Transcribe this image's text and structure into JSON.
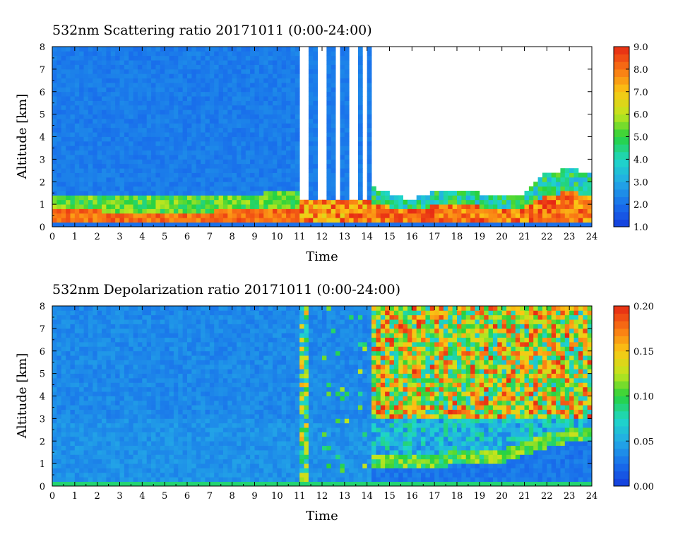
{
  "chart_data": [
    {
      "type": "heatmap",
      "title": "532nm Scattering ratio  20171011 (0:00-24:00)",
      "xlabel": "Time",
      "ylabel": "Altitude [km]",
      "xlim": [
        0,
        24
      ],
      "ylim": [
        0,
        8
      ],
      "x_ticks": [
        "0",
        "1",
        "2",
        "3",
        "4",
        "5",
        "6",
        "7",
        "8",
        "9",
        "10",
        "11",
        "12",
        "13",
        "14",
        "15",
        "16",
        "17",
        "18",
        "19",
        "20",
        "21",
        "22",
        "23",
        "24"
      ],
      "y_ticks": [
        "0",
        "1",
        "2",
        "3",
        "4",
        "5",
        "6",
        "7",
        "8"
      ],
      "colorbar": {
        "range": [
          1.0,
          9.0
        ],
        "ticks": [
          "1.0",
          "2.0",
          "3.0",
          "4.0",
          "5.0",
          "6.0",
          "7.0",
          "8.0",
          "9.0"
        ]
      },
      "grid": false,
      "features": {
        "background_value": 2.2,
        "boundary_layer_value": 7.5,
        "clear_columns_hours": [
          [
            11.0,
            11.4
          ],
          [
            11.9,
            12.1
          ],
          [
            12.6,
            12.8
          ],
          [
            13.2,
            13.5
          ],
          [
            13.9,
            14.0
          ]
        ],
        "blank_after_hour": 14.2,
        "cloud_top_km": [
          [
            14,
            1.9
          ],
          [
            15,
            1.5
          ],
          [
            16,
            1.2
          ],
          [
            17,
            1.6
          ],
          [
            18,
            1.7
          ],
          [
            19,
            1.5
          ],
          [
            20,
            1.3
          ],
          [
            21,
            1.5
          ],
          [
            22,
            2.4
          ],
          [
            23,
            2.6
          ],
          [
            24,
            2.4
          ]
        ]
      }
    },
    {
      "type": "heatmap",
      "title": "532nm Depolarization ratio  20171011 (0:00-24:00)",
      "xlabel": "Time",
      "ylabel": "Altitude [km]",
      "xlim": [
        0,
        24
      ],
      "ylim": [
        0,
        8
      ],
      "x_ticks": [
        "0",
        "1",
        "2",
        "3",
        "4",
        "5",
        "6",
        "7",
        "8",
        "9",
        "10",
        "11",
        "12",
        "13",
        "14",
        "15",
        "16",
        "17",
        "18",
        "19",
        "20",
        "21",
        "22",
        "23",
        "24"
      ],
      "y_ticks": [
        "0",
        "1",
        "2",
        "3",
        "4",
        "5",
        "6",
        "7",
        "8"
      ],
      "colorbar": {
        "range": [
          0.0,
          0.2
        ],
        "ticks": [
          "0.00",
          "0.05",
          "0.10",
          "0.15",
          "0.20"
        ]
      },
      "grid": false,
      "features": {
        "background_value": 0.02,
        "noisy_after_hour": 14.2,
        "noisy_range": [
          0.06,
          0.2
        ],
        "low_layer_km": [
          [
            15.5,
            1.5
          ],
          [
            17,
            1.4
          ],
          [
            19,
            1.7
          ],
          [
            20,
            1.6
          ],
          [
            22,
            2.3
          ],
          [
            23.5,
            2.7
          ]
        ]
      }
    }
  ]
}
